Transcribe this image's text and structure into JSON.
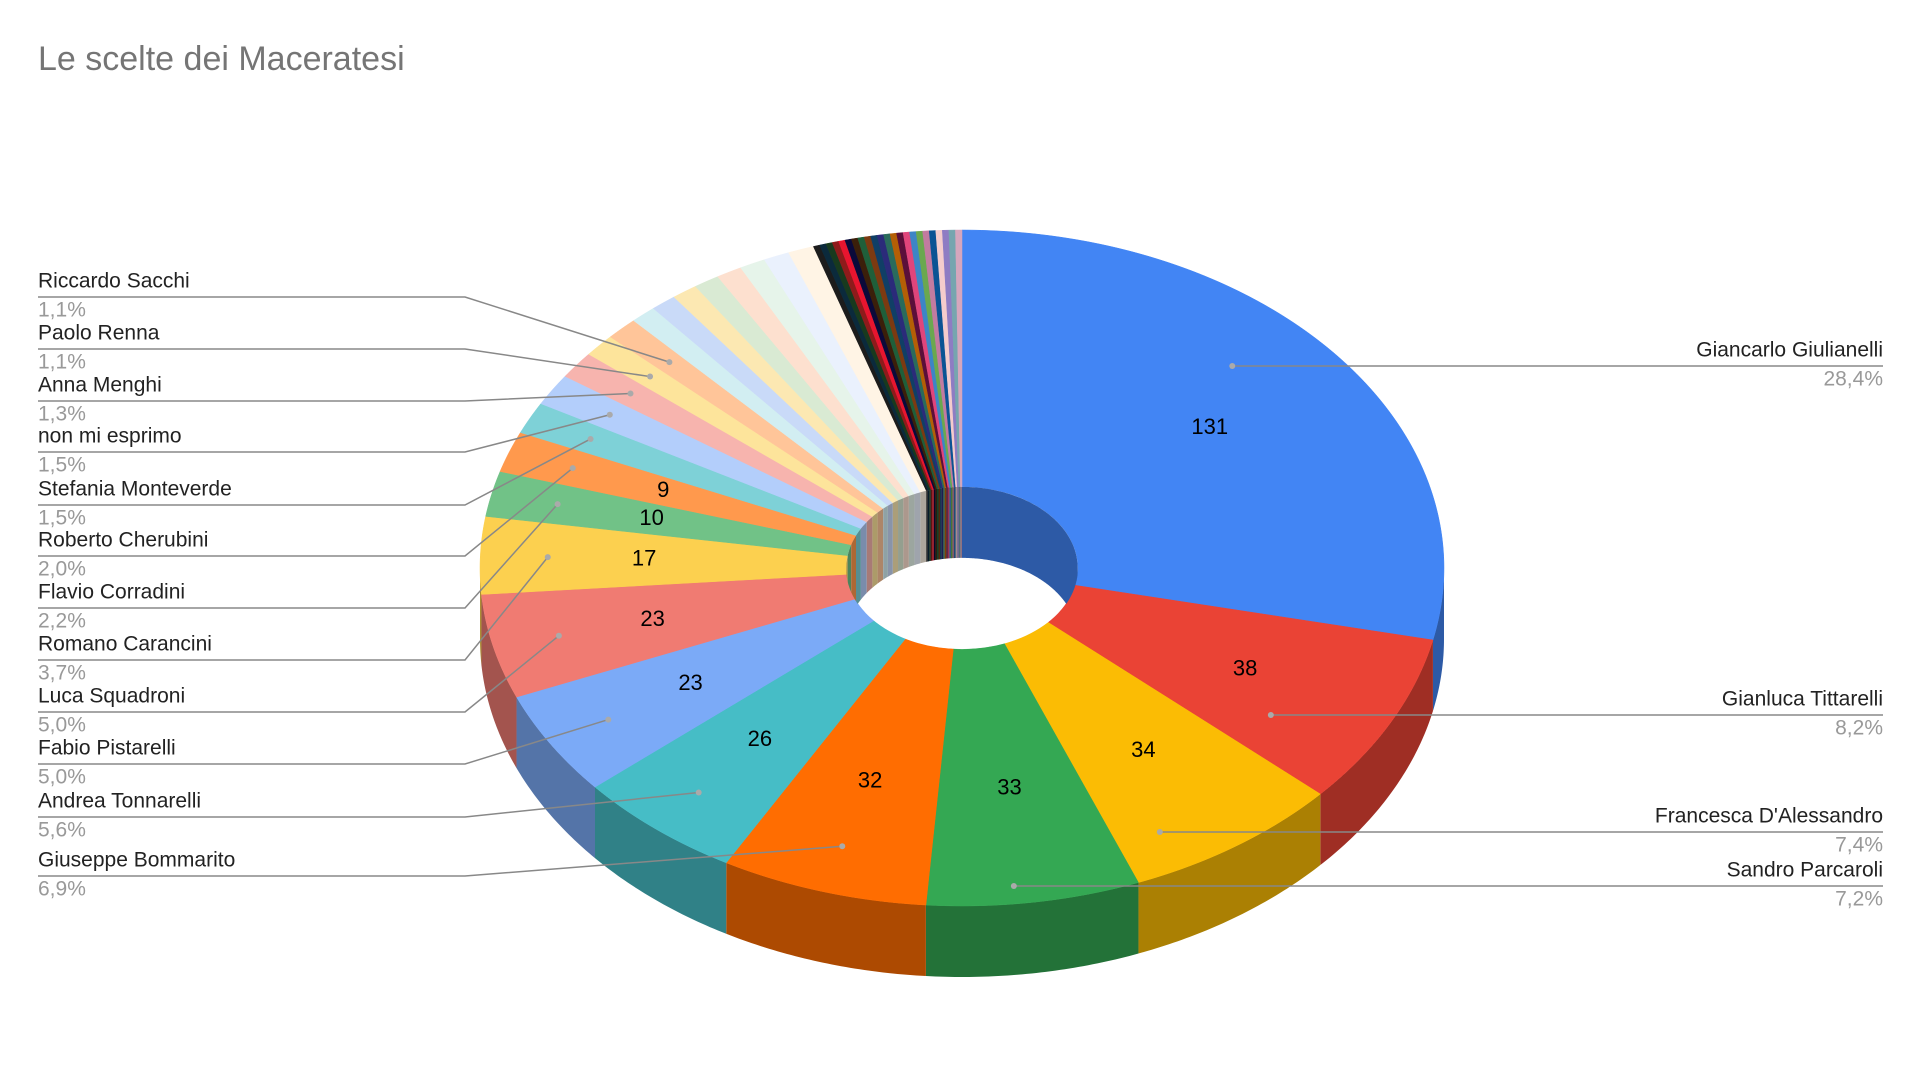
{
  "chart_data": {
    "type": "pie",
    "title": "Le scelte dei Maceratesi",
    "categories": [
      "Giancarlo Giulianelli",
      "Gianluca Tittarelli",
      "Francesca D'Alessandro",
      "Sandro Parcaroli",
      "Giuseppe Bommarito",
      "Andrea Tonnarelli",
      "Fabio Pistarelli",
      "Luca Squadroni",
      "Romano Carancini",
      "Flavio Corradini",
      "Roberto Cherubini",
      "Stefania Monteverde",
      "non mi esprimo",
      "Anna Menghi",
      "Paolo Renna",
      "Riccardo Sacchi",
      null,
      null,
      null,
      null,
      null,
      null,
      null,
      null,
      null,
      null,
      null,
      null,
      null,
      null,
      null,
      null,
      null,
      null,
      null,
      null,
      null,
      null,
      null,
      null,
      null,
      null,
      null,
      null,
      null,
      null,
      null
    ],
    "values": [
      131,
      38,
      34,
      33,
      32,
      26,
      23,
      23,
      17,
      10,
      9,
      7,
      7,
      6,
      5,
      5,
      4,
      4,
      4,
      4,
      4,
      4,
      4,
      4,
      1,
      1,
      1,
      1,
      1,
      1,
      1,
      1,
      1,
      1,
      1,
      1,
      1,
      1,
      1,
      1,
      1,
      1,
      1,
      1,
      1,
      1,
      1
    ],
    "percent_labels": [
      "28,4%",
      "8,2%",
      "7,4%",
      "7,2%",
      "6,9%",
      "5,6%",
      "5,0%",
      "5,0%",
      "3,7%",
      "2,2%",
      "2,0%",
      "1,5%",
      "1,5%",
      "1,3%",
      "1,1%",
      "1,1%",
      null,
      null,
      null,
      null,
      null,
      null,
      null,
      null,
      null,
      null,
      null,
      null,
      null,
      null,
      null,
      null,
      null,
      null,
      null,
      null,
      null,
      null,
      null,
      null,
      null,
      null,
      null,
      null,
      null,
      null,
      null
    ],
    "colors": [
      "#4285f4",
      "#ea4335",
      "#fbbc04",
      "#34a853",
      "#ff6d01",
      "#46bdc6",
      "#7baaf7",
      "#f07b72",
      "#fcd04f",
      "#71c287",
      "#ff994d",
      "#7ed1d7",
      "#b3cefb",
      "#f7b4ae",
      "#fde49b",
      "#ffc599",
      "#d2eef2",
      "#c9daf8",
      "#fce8b2",
      "#d9ead3",
      "#fde0cf",
      "#e6f4ea",
      "#eaf1fd",
      "#fff4e5",
      "#1c1c1c",
      "#0b2a3c",
      "#183a1e",
      "#8e1b1b",
      "#e8152f",
      "#0a0a3a",
      "#3b1f0a",
      "#1f5f3a",
      "#7c3a11",
      "#103f66",
      "#2b2b7a",
      "#2a6b5c",
      "#b45f06",
      "#5b0f3a",
      "#e0457b",
      "#3d85c6",
      "#6aa84f",
      "#c27ba0",
      "#0b5394",
      "#f4cccc",
      "#8e7cc3",
      "#76a5af",
      "#d5a6bd"
    ]
  }
}
